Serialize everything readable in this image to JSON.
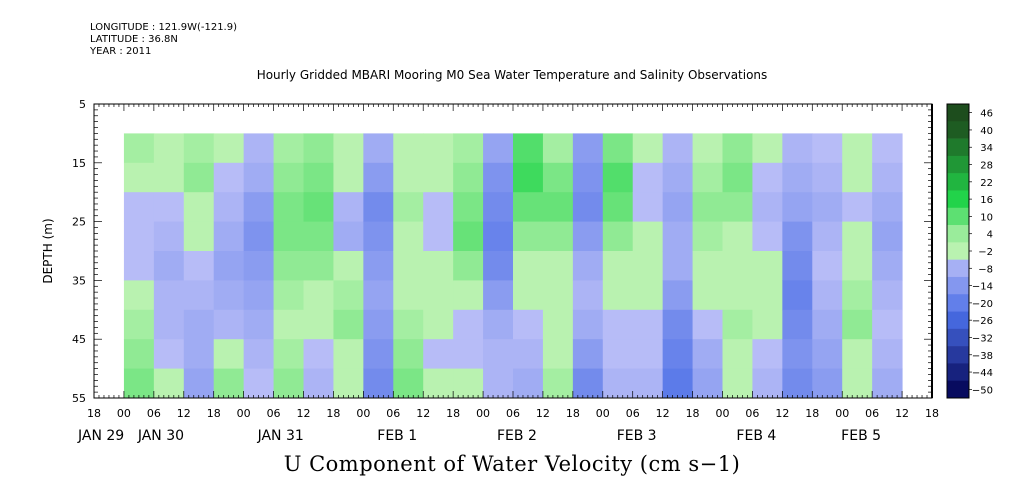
{
  "meta": {
    "longitude": "LONGITUDE : 121.9W(-121.9)",
    "latitude": "LATITUDE : 36.8N",
    "year": "YEAR : 2011"
  },
  "chart_data": {
    "type": "heatmap",
    "title": "Hourly Gridded MBARI Mooring M0 Sea Water Temperature and Salinity Observations",
    "xlabel": "U Component of Water Velocity (cm s−1)",
    "ylabel": "DEPTH (m)",
    "ylim": [
      5,
      55
    ],
    "y_reversed": true,
    "y_ticks": [
      5,
      15,
      25,
      35,
      45,
      55
    ],
    "data_depth_range": [
      10,
      55
    ],
    "x_start": "2011-01-29T18:00",
    "x_end": "2011-02-05T18:00",
    "data_x_start": "2011-01-30T00:00",
    "x_hour_ticks": [
      "18",
      "00",
      "06",
      "12",
      "18",
      "00",
      "06",
      "12",
      "18",
      "00",
      "06",
      "12",
      "18",
      "00",
      "06",
      "12",
      "18",
      "00",
      "06",
      "12",
      "18",
      "00",
      "06",
      "12",
      "18",
      "00",
      "06",
      "12",
      "18"
    ],
    "x_day_labels": [
      {
        "label": "JAN 29",
        "hour": 0
      },
      {
        "label": "JAN 30",
        "hour": 12
      },
      {
        "label": "JAN 31",
        "hour": 36
      },
      {
        "label": "FEB  1",
        "hour": 60
      },
      {
        "label": "FEB  2",
        "hour": 84
      },
      {
        "label": "FEB  3",
        "hour": 108
      },
      {
        "label": "FEB  4",
        "hour": 132
      },
      {
        "label": "FEB  5",
        "hour": 153
      }
    ],
    "colorbar": {
      "levels": [
        -50,
        -44,
        -38,
        -32,
        -26,
        -20,
        -14,
        -8,
        -2,
        4,
        10,
        16,
        22,
        28,
        34,
        40,
        46
      ],
      "label_values": [
        "46",
        "40",
        "34",
        "28",
        "22",
        "16",
        "10",
        "4",
        "−2",
        "−8",
        "−14",
        "−20",
        "−26",
        "−32",
        "−38",
        "−44",
        "−50"
      ],
      "colors": {
        "blue_max": "#00004f",
        "blue_mid": "#4a6ee6",
        "neutral_blue": "#b7bcf7",
        "neutral_green": "#b9f2b0",
        "green_mid": "#22d44a",
        "green_max": "#1d4d1d"
      }
    },
    "columns": [
      {
        "hour": 0,
        "u": [
          6,
          4,
          -2,
          -2,
          -1,
          2,
          6,
          8,
          10
        ]
      },
      {
        "hour": 6,
        "u": [
          4,
          2,
          0,
          -4,
          -6,
          -4,
          -4,
          -2,
          4
        ]
      },
      {
        "hour": 12,
        "u": [
          6,
          8,
          4,
          2,
          -2,
          -4,
          -6,
          -6,
          -8
        ]
      },
      {
        "hour": 18,
        "u": [
          2,
          0,
          -4,
          -6,
          -8,
          -6,
          -4,
          2,
          8
        ]
      },
      {
        "hour": 24,
        "u": [
          -4,
          -6,
          -10,
          -12,
          -10,
          -8,
          -6,
          -4,
          -2
        ]
      },
      {
        "hour": 30,
        "u": [
          6,
          8,
          10,
          10,
          8,
          6,
          4,
          6,
          8
        ]
      },
      {
        "hour": 36,
        "u": [
          8,
          10,
          12,
          10,
          8,
          4,
          2,
          -2,
          -4
        ]
      },
      {
        "hour": 42,
        "u": [
          4,
          2,
          -4,
          -6,
          2,
          6,
          8,
          4,
          2
        ]
      },
      {
        "hour": 48,
        "u": [
          -6,
          -10,
          -14,
          -12,
          -10,
          -8,
          -10,
          -12,
          -14
        ]
      },
      {
        "hour": 54,
        "u": [
          2,
          4,
          6,
          4,
          2,
          4,
          6,
          8,
          10
        ]
      },
      {
        "hour": 60,
        "u": [
          4,
          2,
          0,
          -2,
          2,
          4,
          2,
          -2,
          4
        ]
      },
      {
        "hour": 66,
        "u": [
          6,
          8,
          10,
          12,
          8,
          2,
          -2,
          -2,
          2
        ]
      },
      {
        "hour": 72,
        "u": [
          -8,
          -12,
          -14,
          -16,
          -14,
          -10,
          -6,
          -4,
          -4
        ]
      },
      {
        "hour": 78,
        "u": [
          14,
          16,
          12,
          8,
          4,
          2,
          -2,
          -4,
          -6
        ]
      },
      {
        "hour": 84,
        "u": [
          6,
          10,
          12,
          8,
          4,
          2,
          2,
          4,
          6
        ]
      },
      {
        "hour": 90,
        "u": [
          -10,
          -12,
          -14,
          -10,
          -6,
          -4,
          -6,
          -10,
          -14
        ]
      },
      {
        "hour": 96,
        "u": [
          10,
          14,
          12,
          8,
          4,
          2,
          0,
          -2,
          -4
        ]
      },
      {
        "hour": 102,
        "u": [
          2,
          0,
          -2,
          2,
          4,
          2,
          0,
          -2,
          -4
        ]
      },
      {
        "hour": 108,
        "u": [
          -4,
          -6,
          -8,
          -6,
          -6,
          -10,
          -14,
          -16,
          -18
        ]
      },
      {
        "hour": 114,
        "u": [
          4,
          6,
          8,
          6,
          4,
          2,
          -2,
          -6,
          -8
        ]
      },
      {
        "hour": 120,
        "u": [
          8,
          10,
          8,
          4,
          2,
          4,
          6,
          4,
          2
        ]
      },
      {
        "hour": 126,
        "u": [
          2,
          -2,
          -4,
          -2,
          2,
          4,
          2,
          -2,
          -4
        ]
      },
      {
        "hour": 132,
        "u": [
          -4,
          -6,
          -8,
          -12,
          -14,
          -16,
          -14,
          -12,
          -14
        ]
      },
      {
        "hour": 138,
        "u": [
          -2,
          -4,
          -6,
          -4,
          -2,
          -4,
          -6,
          -8,
          -10
        ]
      },
      {
        "hour": 144,
        "u": [
          4,
          2,
          0,
          2,
          4,
          6,
          8,
          4,
          2
        ]
      },
      {
        "hour": 150,
        "u": [
          -2,
          -4,
          -6,
          -8,
          -6,
          -4,
          -2,
          -4,
          -6
        ]
      }
    ]
  }
}
